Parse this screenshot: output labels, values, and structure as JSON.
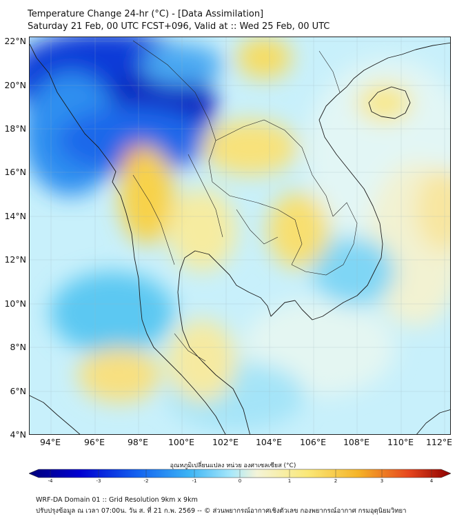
{
  "header": {
    "title_line1": "Temperature Change 24-hr (°C) - [Data Assimilation]",
    "title_line2": "Saturday 21 Feb, 00 UTC FCST+096, Valid at :: Wed 25 Feb, 00 UTC"
  },
  "map": {
    "lat_labels": [
      "22°N",
      "20°N",
      "18°N",
      "16°N",
      "14°N",
      "12°N",
      "10°N",
      "8°N",
      "6°N",
      "4°N"
    ],
    "lon_labels": [
      "94°E",
      "96°E",
      "98°E",
      "100°E",
      "102°E",
      "104°E",
      "106°E",
      "108°E",
      "110°E",
      "112°E"
    ],
    "background_color": "#c8f0fb",
    "coastline_color": "#1a1a1a"
  },
  "colorbar": {
    "title": "อุณหภูมิเปลี่ยนแปลง หน่วย องศาเซลเซียส (°C)",
    "tick_labels": [
      "-4",
      "-3",
      "-2",
      "-1",
      "0",
      "1",
      "2",
      "3",
      "4"
    ],
    "range": [
      -4,
      4
    ],
    "colors": [
      "#00007a",
      "#0000d0",
      "#1464f0",
      "#3cb4f5",
      "#a8e8fa",
      "#f4f4d8",
      "#fae878",
      "#f5b428",
      "#e6461e",
      "#8c0000"
    ]
  },
  "footer": {
    "line1": "WRF-DA Domain 01 :: Grid Resolution 9km x 9km",
    "line2": "ปรับปรุงข้อมูล ณ เวลา 07:00น. วัน ส. ที่ 21 ก.พ. 2569 -- © ส่วนพยากรณ์อากาศเชิงตัวเลข กองพยากรณ์อากาศ กรมอุตุนิยมวิทยา"
  }
}
